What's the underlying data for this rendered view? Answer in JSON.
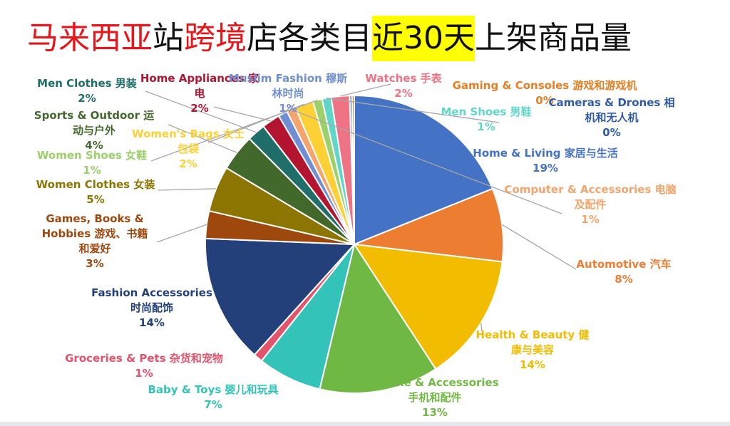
{
  "title_parts": [
    {
      "text": "马来西亚",
      "style": "red"
    },
    {
      "text": "站",
      "style": "black"
    },
    {
      "text": "跨境",
      "style": "red"
    },
    {
      "text": "店各类目",
      "style": "black"
    },
    {
      "text": "近30天",
      "style": "highlight"
    },
    {
      "text": "上架商品量",
      "style": "black"
    }
  ],
  "chart_data": {
    "type": "pie",
    "title": "马来西亚站跨境店各类目近30天上架商品量",
    "direction": "clockwise",
    "start": "12 o'clock",
    "legend": "none",
    "slices": [
      {
        "name": "Home & Living 家居与生活",
        "value": 19,
        "percent_label": "19%",
        "color": "#4472c4"
      },
      {
        "name": "Automotive 汽车",
        "value": 8,
        "percent_label": "8%",
        "color": "#ed7d31"
      },
      {
        "name": "Health & Beauty 健康与美容",
        "value": 14,
        "percent_label": "14%",
        "color": "#f2bc00"
      },
      {
        "name": "Mobile & Accessories 手机和配件",
        "value": 13,
        "percent_label": "13%",
        "color": "#70b844"
      },
      {
        "name": "Baby & Toys 婴儿和玩具",
        "value": 7,
        "percent_label": "7%",
        "color": "#33c3b9"
      },
      {
        "name": "Groceries & Pets 杂货和宠物",
        "value": 1,
        "percent_label": "1%",
        "color": "#e2536c"
      },
      {
        "name": "Fashion Accessories 时尚配饰",
        "value": 14,
        "percent_label": "14%",
        "color": "#24407b"
      },
      {
        "name": "Games, Books & Hobbies 游戏、书籍和爱好",
        "value": 3,
        "percent_label": "3%",
        "color": "#9e480e"
      },
      {
        "name": "Women Clothes 女装",
        "value": 5,
        "percent_label": "5%",
        "color": "#8c7500"
      },
      {
        "name": "Sports & Outdoor 运动与户外",
        "value": 4,
        "percent_label": "4%",
        "color": "#43682b"
      },
      {
        "name": "Men Clothes 男装",
        "value": 2,
        "percent_label": "2%",
        "color": "#1f6e6a"
      },
      {
        "name": "Home Appliances 家电",
        "value": 2,
        "percent_label": "2%",
        "color": "#b3142f"
      },
      {
        "name": "Muslim Fashion 穆斯林时尚",
        "value": 1,
        "percent_label": "1%",
        "color": "#6f8fd2"
      },
      {
        "name": "Computer & Accessories 电脑及配件",
        "value": 1,
        "percent_label": "1%",
        "color": "#f4a46c"
      },
      {
        "name": "Women's Bags 女士包袋",
        "value": 2,
        "percent_label": "2%",
        "color": "#fdd136"
      },
      {
        "name": "Women Shoes 女鞋",
        "value": 1,
        "percent_label": "1%",
        "color": "#9bd06b"
      },
      {
        "name": "Men Shoes 男鞋",
        "value": 1,
        "percent_label": "1%",
        "color": "#5fd6c8"
      },
      {
        "name": "Watches 手表",
        "value": 2,
        "percent_label": "2%",
        "color": "#ee7384"
      },
      {
        "name": "Gaming & Consoles 游戏和游戏机",
        "value": 0.25,
        "percent_label": "0%",
        "color": "#2e5aa8"
      },
      {
        "name": "Cameras & Drones 相机和无人机",
        "value": 0.25,
        "percent_label": "0%",
        "color": "#c8882a"
      }
    ],
    "labels": [
      {
        "lines": [
          "Home & Living  家居与生活",
          "19%"
        ],
        "color": "#4472c4"
      },
      {
        "lines": [
          "Automotive  汽车",
          "8%"
        ],
        "color": "#ed7d31"
      },
      {
        "lines": [
          "Health & Beauty  健",
          "康与美容",
          "14%"
        ],
        "color": "#f2bc00"
      },
      {
        "lines": [
          "Mobile & Accessories",
          "手机和配件",
          "13%"
        ],
        "color": "#70b844"
      },
      {
        "lines": [
          "Baby & Toys  婴儿和玩具",
          "7%"
        ],
        "color": "#33c3b9"
      },
      {
        "lines": [
          "Groceries & Pets  杂货和宠物",
          "1%"
        ],
        "color": "#e2536c"
      },
      {
        "lines": [
          "Fashion Accessories",
          "时尚配饰",
          "14%"
        ],
        "color": "#24407b"
      },
      {
        "lines": [
          "Games, Books &",
          "Hobbies  游戏、书籍",
          "和爱好",
          "3%"
        ],
        "color": "#9e480e"
      },
      {
        "lines": [
          "Women Clothes  女装",
          "5%"
        ],
        "color": "#8c7500"
      },
      {
        "lines": [
          "Sports & Outdoor  运",
          "动与户外",
          "4%"
        ],
        "color": "#43682b"
      },
      {
        "lines": [
          "Men Clothes  男装",
          "2%"
        ],
        "color": "#1f6e6a"
      },
      {
        "lines": [
          "Home Appliances  家",
          "电",
          "2%"
        ],
        "color": "#b3142f"
      },
      {
        "lines": [
          "Muslim Fashion  穆斯",
          "林时尚",
          "1%"
        ],
        "color": "#6f8fd2"
      },
      {
        "lines": [
          "Computer & Accessories  电脑",
          "及配件",
          "1%"
        ],
        "color": "#f4a46c"
      },
      {
        "lines": [
          "Women's Bags  女士",
          "包袋",
          "2%"
        ],
        "color": "#fdd136"
      },
      {
        "lines": [
          "Women Shoes  女鞋",
          "1%"
        ],
        "color": "#9bd06b"
      },
      {
        "lines": [
          "Men Shoes  男鞋",
          "1%"
        ],
        "color": "#5fd6c8"
      },
      {
        "lines": [
          "Watches  手表",
          "2%"
        ],
        "color": "#ee7384"
      },
      {
        "lines": [
          "Gaming & Consoles  游戏和游戏机",
          "0%"
        ],
        "color": "#e67e22"
      },
      {
        "lines": [
          "Cameras & Drones  相",
          "机和无人机",
          "0%"
        ],
        "color": "#2e5aa8"
      }
    ]
  }
}
